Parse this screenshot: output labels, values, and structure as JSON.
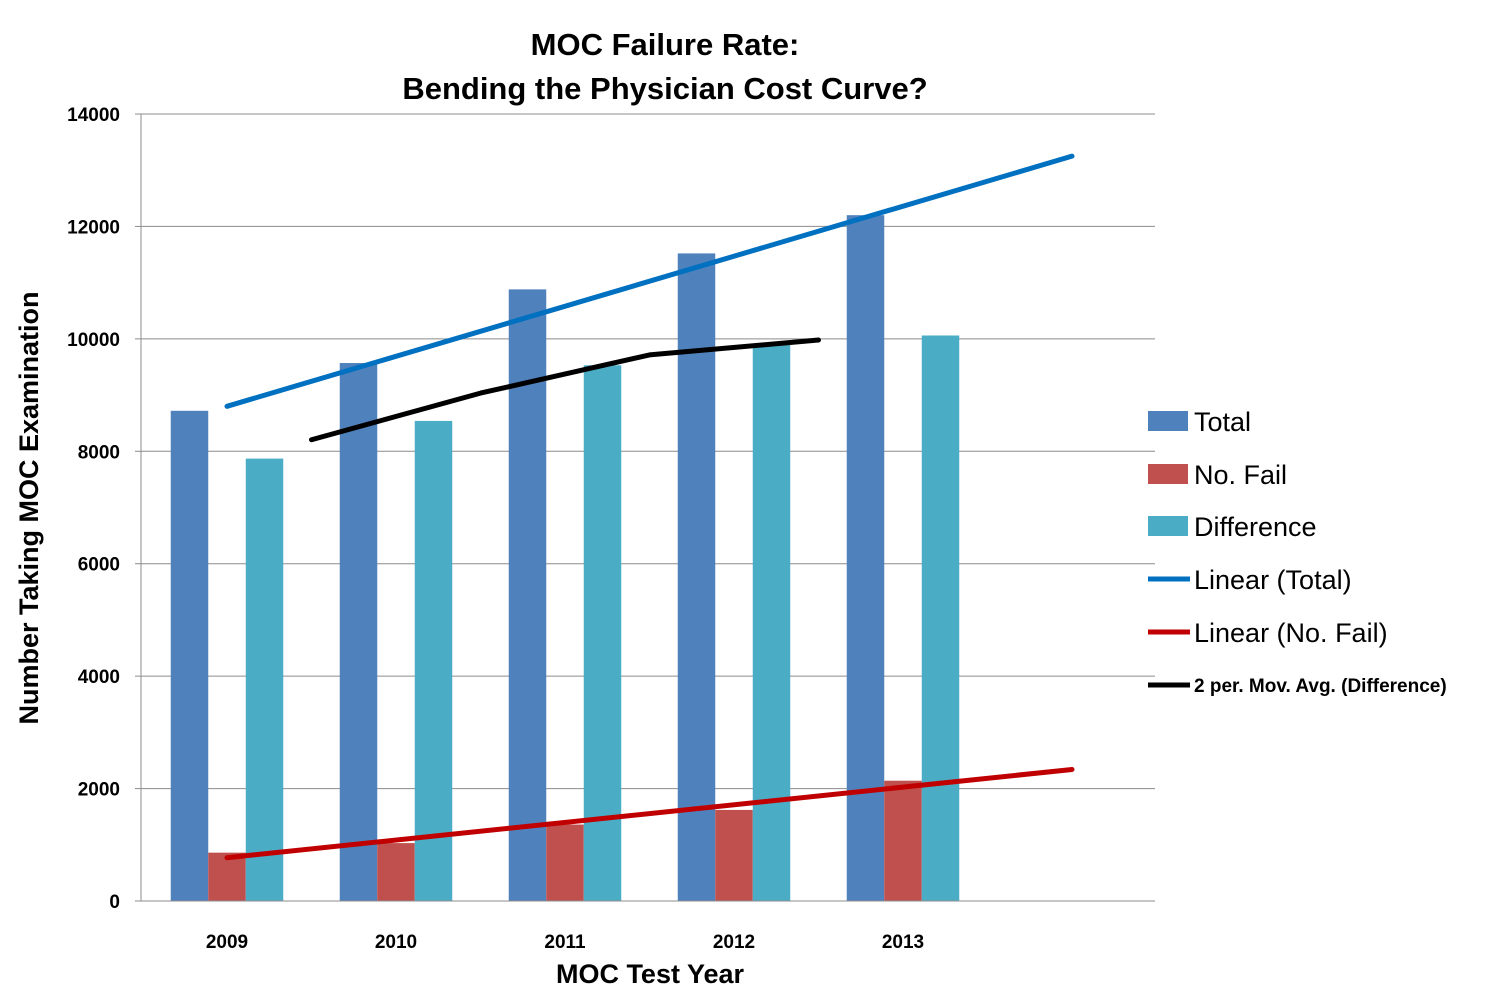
{
  "chart_data": {
    "type": "bar",
    "title_lines": [
      "MOC Failure Rate:",
      "Bending the Physician Cost Curve?"
    ],
    "xlabel": "MOC Test Year",
    "ylabel": "Number Taking MOC Examination",
    "categories": [
      "2009",
      "2010",
      "2011",
      "2012",
      "2013"
    ],
    "ylim": [
      0,
      14000
    ],
    "yticks": [
      0,
      2000,
      4000,
      6000,
      8000,
      10000,
      12000,
      14000
    ],
    "grid": true,
    "legend_position": "right",
    "series": [
      {
        "name": "Total",
        "kind": "bar",
        "color": "#4F81BD",
        "values": [
          8720,
          9570,
          10880,
          11520,
          12200
        ]
      },
      {
        "name": "No. Fail",
        "kind": "bar",
        "color": "#C0504D",
        "values": [
          860,
          1030,
          1360,
          1620,
          2140
        ]
      },
      {
        "name": "Difference",
        "kind": "bar",
        "color": "#4BACC6",
        "values": [
          7870,
          8540,
          9530,
          9900,
          10060
        ]
      }
    ],
    "trendlines": [
      {
        "name": "Linear (Total)",
        "color": "#0070C0",
        "start": 8800,
        "end": 13250
      },
      {
        "name": "Linear (No. Fail)",
        "color": "#C00000",
        "start": 770,
        "end": 2340
      },
      {
        "name": "2 per. Mov. Avg. (Difference)",
        "color": "#000000",
        "values": [
          8205,
          9035,
          9715,
          9980
        ]
      }
    ]
  }
}
